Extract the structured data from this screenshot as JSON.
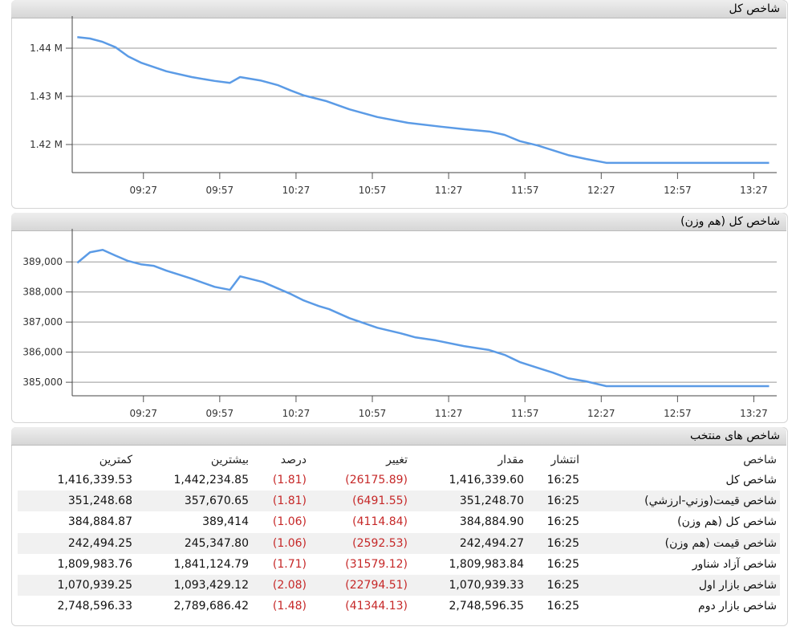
{
  "chart_data": [
    {
      "type": "line",
      "title": "شاخص کل",
      "color": "#5b9be6",
      "x": [
        "09:01",
        "09:06",
        "09:11",
        "09:16",
        "09:21",
        "09:26",
        "09:36",
        "09:46",
        "09:55",
        "10:01",
        "10:05",
        "10:13",
        "10:20",
        "10:25",
        "10:30",
        "10:39",
        "10:48",
        "10:59",
        "11:11",
        "11:24",
        "11:33",
        "11:43",
        "11:49",
        "11:55",
        "12:02",
        "12:08",
        "12:14",
        "12:21",
        "12:29",
        "13:33"
      ],
      "values": [
        1442300,
        1442000,
        1441300,
        1440200,
        1438300,
        1437000,
        1435200,
        1434000,
        1433200,
        1432800,
        1434000,
        1433300,
        1432300,
        1431200,
        1430200,
        1429000,
        1427300,
        1425700,
        1424500,
        1423700,
        1423200,
        1422700,
        1422000,
        1420700,
        1419800,
        1418800,
        1417800,
        1417000,
        1416200,
        1416200
      ],
      "xlim": [
        "08:59",
        "13:36"
      ],
      "xticks": [
        "09:27",
        "09:57",
        "10:27",
        "10:57",
        "11:27",
        "11:57",
        "12:27",
        "12:57",
        "13:27"
      ],
      "ylim": [
        1414170,
        1446670
      ],
      "yticks": [
        {
          "value": 1420000,
          "label": "1.42 M"
        },
        {
          "value": 1430000,
          "label": "1.43 M"
        },
        {
          "value": 1440000,
          "label": "1.44 M"
        }
      ],
      "grid": true
    },
    {
      "type": "line",
      "title": "شاخص کل (هم وزن)",
      "color": "#5b9be6",
      "x": [
        "09:01",
        "09:06",
        "09:11",
        "09:16",
        "09:21",
        "09:26",
        "09:31",
        "09:36",
        "09:46",
        "09:55",
        "10:01",
        "10:05",
        "10:14",
        "10:25",
        "10:30",
        "10:36",
        "10:40",
        "10:48",
        "10:59",
        "11:08",
        "11:14",
        "11:22",
        "11:33",
        "11:43",
        "11:49",
        "11:55",
        "12:02",
        "12:08",
        "12:14",
        "12:21",
        "12:29",
        "13:33"
      ],
      "values": [
        388970,
        389320,
        389400,
        389210,
        389030,
        388920,
        388870,
        388710,
        388440,
        388170,
        388070,
        388520,
        388330,
        387930,
        387720,
        387530,
        387430,
        387130,
        386810,
        386630,
        386490,
        386390,
        386200,
        386070,
        385910,
        385670,
        385480,
        385320,
        385130,
        385030,
        384870,
        384870
      ],
      "xlim": [
        "08:59",
        "13:36"
      ],
      "xticks": [
        "09:27",
        "09:57",
        "10:27",
        "10:57",
        "11:27",
        "11:57",
        "12:27",
        "12:57",
        "13:27"
      ],
      "ylim": [
        384550,
        390100
      ],
      "yticks": [
        {
          "value": 385000,
          "label": "385,000"
        },
        {
          "value": 386000,
          "label": "386,000"
        },
        {
          "value": 387000,
          "label": "387,000"
        },
        {
          "value": 388000,
          "label": "388,000"
        },
        {
          "value": 389000,
          "label": "389,000"
        }
      ],
      "grid": true
    }
  ],
  "table": {
    "title": "شاخص های منتخب",
    "header": [
      "شاخص",
      "انتشار",
      "مقدار",
      "تغییر",
      "درصد",
      "بیشترین",
      "کمترین"
    ],
    "rows": [
      [
        "شاخص کل",
        "16:25",
        "1,416,339.60",
        "(26175.89)",
        "(1.81)",
        "1,442,234.85",
        "1,416,339.53"
      ],
      [
        "شاخص قیمت(وزني-ارزشي)",
        "16:25",
        "351,248.70",
        "(6491.55)",
        "(1.81)",
        "357,670.65",
        "351,248.68"
      ],
      [
        "شاخص کل (هم وزن)",
        "16:25",
        "384,884.90",
        "(4114.84)",
        "(1.06)",
        "389,414",
        "384,884.87"
      ],
      [
        "شاخص قیمت (هم وزن)",
        "16:25",
        "242,494.27",
        "(2592.53)",
        "(1.06)",
        "245,347.80",
        "242,494.25"
      ],
      [
        "شاخص آزاد شناور",
        "16:25",
        "1,809,983.84",
        "(31579.12)",
        "(1.71)",
        "1,841,124.79",
        "1,809,983.76"
      ],
      [
        "شاخص بازار اول",
        "16:25",
        "1,070,939.33",
        "(22794.51)",
        "(2.08)",
        "1,093,429.12",
        "1,070,939.25"
      ],
      [
        "شاخص بازار دوم",
        "16:25",
        "2,748,596.35",
        "(41344.13)",
        "(1.48)",
        "2,789,686.42",
        "2,748,596.33"
      ]
    ]
  }
}
